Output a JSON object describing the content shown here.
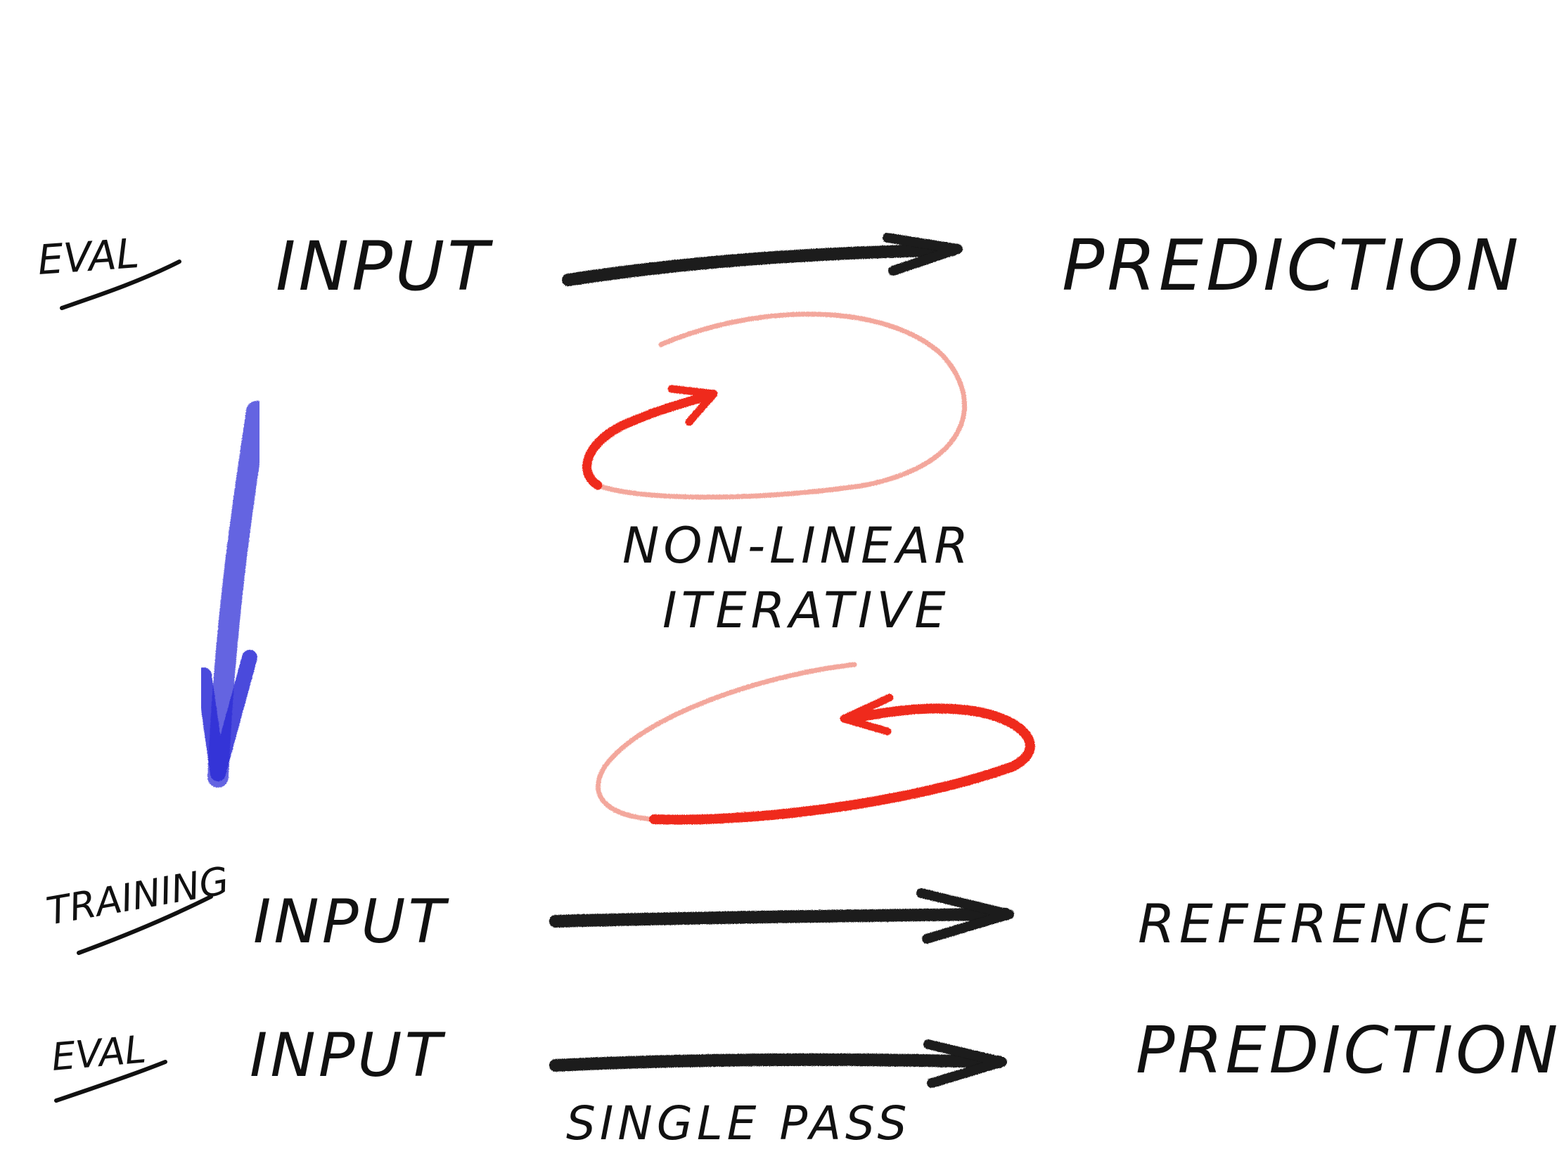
{
  "colors": {
    "ink": "#111111",
    "arrow_dark": "#1a1a1a",
    "iterative_red": "#ef2a1c",
    "iterative_red_faded": "#f3a79c",
    "training_blue": "#2a2ad6"
  },
  "top_row": {
    "tag": "EVAL",
    "input": "INPUT",
    "output": "PREDICTION"
  },
  "iterative": {
    "caption_line1": "NON-LINEAR",
    "caption_line2": "ITERATIVE"
  },
  "training_row": {
    "tag": "TRAINING",
    "input": "INPUT",
    "output": "REFERENCE"
  },
  "bottom_row": {
    "tag": "EVAL",
    "input": "INPUT",
    "output": "PREDICTION",
    "caption": "SINGLE PASS"
  },
  "icons": {
    "top_arrow": "arrow-right-icon",
    "upper_loop": "loop-arrow-icon",
    "lower_loop": "loop-arrow-icon",
    "down_arrow": "arrow-down-icon",
    "training_arrow": "arrow-right-icon",
    "bottom_arrow": "arrow-right-icon"
  }
}
